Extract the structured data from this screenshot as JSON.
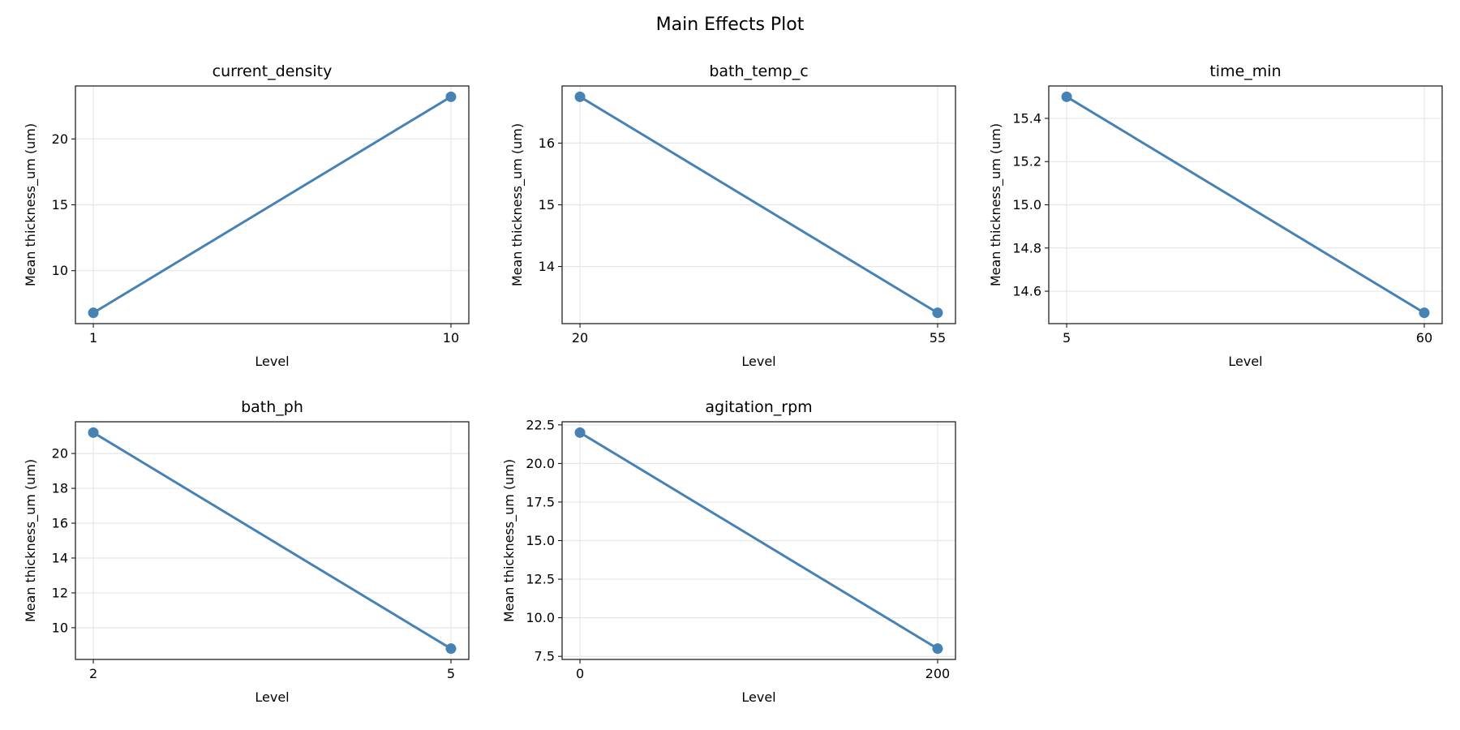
{
  "chart_data": {
    "title": "Main Effects Plot",
    "line_color": "#4682b4",
    "grid": true,
    "panels": [
      {
        "type": "line",
        "title": "current_density",
        "xlabel": "Level",
        "ylabel": "Mean thickness_um (um)",
        "x": [
          1,
          10
        ],
        "y": [
          6.8,
          23.2
        ],
        "xticks": [
          "1",
          "10"
        ],
        "yticks": [
          10,
          15,
          20
        ],
        "ytick_labels": [
          "10",
          "15",
          "20"
        ],
        "ylim": [
          5.98,
          24.02
        ]
      },
      {
        "type": "line",
        "title": "bath_temp_c",
        "xlabel": "Level",
        "ylabel": "Mean thickness_um (um)",
        "x": [
          20,
          55
        ],
        "y": [
          16.75,
          13.25
        ],
        "xticks": [
          "20",
          "55"
        ],
        "yticks": [
          14,
          15,
          16
        ],
        "ytick_labels": [
          "14",
          "15",
          "16"
        ],
        "ylim": [
          13.075,
          16.925
        ]
      },
      {
        "type": "line",
        "title": "time_min",
        "xlabel": "Level",
        "ylabel": "Mean thickness_um (um)",
        "x": [
          5,
          60
        ],
        "y": [
          15.5,
          14.5
        ],
        "xticks": [
          "5",
          "60"
        ],
        "yticks": [
          14.6,
          14.8,
          15.0,
          15.2,
          15.4
        ],
        "ytick_labels": [
          "14.6",
          "14.8",
          "15.0",
          "15.2",
          "15.4"
        ],
        "ylim": [
          14.45,
          15.55
        ]
      },
      {
        "type": "line",
        "title": "bath_ph",
        "xlabel": "Level",
        "ylabel": "Mean thickness_um (um)",
        "x": [
          2,
          5
        ],
        "y": [
          21.2,
          8.8
        ],
        "xticks": [
          "2",
          "5"
        ],
        "yticks": [
          10,
          12,
          14,
          16,
          18,
          20
        ],
        "ytick_labels": [
          "10",
          "12",
          "14",
          "16",
          "18",
          "20"
        ],
        "ylim": [
          8.18,
          21.82
        ]
      },
      {
        "type": "line",
        "title": "agitation_rpm",
        "xlabel": "Level",
        "ylabel": "Mean thickness_um (um)",
        "x": [
          0,
          200
        ],
        "y": [
          22.0,
          8.0
        ],
        "xticks": [
          "0",
          "200"
        ],
        "yticks": [
          7.5,
          10.0,
          12.5,
          15.0,
          17.5,
          20.0,
          22.5
        ],
        "ytick_labels": [
          "7.5",
          "10.0",
          "12.5",
          "15.0",
          "17.5",
          "20.0",
          "22.5"
        ],
        "ylim": [
          7.3,
          22.7
        ]
      }
    ]
  }
}
